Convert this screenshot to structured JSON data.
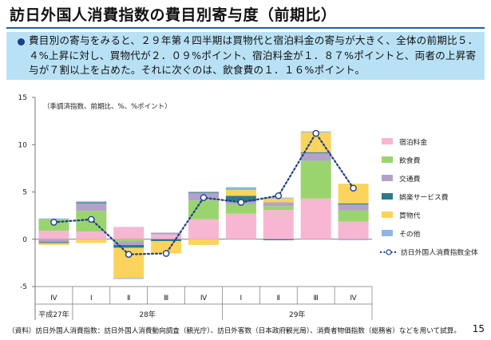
{
  "header": {
    "title": "訪日外国人消費指数の費目別寄与度（前期比）"
  },
  "summary": {
    "text": "費目別の寄与をみると、２９年第４四半期は買物代と宿泊料金の寄与が大きく、全体の前期比５．４%上昇に対し、買物代が２．０９%ポイント、宿泊料金が１．８７%ポイントと、両者の上昇寄与が７割以上を占めた。それに次ぐのは、飲食費の１．１６%ポイント。"
  },
  "chart_data": {
    "type": "bar",
    "stacked": true,
    "note": "（季調済指数、前期比、%、%ポイント）",
    "ylim": [
      -5,
      15
    ],
    "yticks": [
      -5,
      0,
      5,
      10,
      15
    ],
    "categories": [
      "Ⅳ",
      "Ⅰ",
      "Ⅱ",
      "Ⅲ",
      "Ⅳ",
      "Ⅰ",
      "Ⅱ",
      "Ⅲ",
      "Ⅳ"
    ],
    "year_groups": [
      {
        "label": "平成27年",
        "start": 0,
        "end": 0
      },
      {
        "label": "28年",
        "start": 1,
        "end": 4
      },
      {
        "label": "29年",
        "start": 5,
        "end": 8
      }
    ],
    "series": [
      {
        "name": "宿泊料金",
        "color": "#f7b6d2",
        "values": [
          0.9,
          0.8,
          1.3,
          0.5,
          2.1,
          2.7,
          3.1,
          4.3,
          1.87
        ]
      },
      {
        "name": "飲食費",
        "color": "#9ad46f",
        "values": [
          1.2,
          2.2,
          -0.2,
          0.0,
          2.0,
          1.0,
          0.4,
          4.0,
          1.16
        ]
      },
      {
        "name": "交通費",
        "color": "#b3a2c7",
        "values": [
          -0.3,
          0.8,
          -0.4,
          0.2,
          0.8,
          0.3,
          0.4,
          0.8,
          0.65
        ]
      },
      {
        "name": "娯楽サービス費",
        "color": "#2e7a8c",
        "values": [
          -0.1,
          0.1,
          -0.3,
          -0.2,
          0.1,
          0.6,
          -0.1,
          0.1,
          0.1
        ]
      },
      {
        "name": "買物代",
        "color": "#fcd35c",
        "values": [
          -0.2,
          -0.4,
          -3.2,
          -1.3,
          -0.6,
          0.6,
          0.4,
          2.1,
          2.09
        ]
      },
      {
        "name": "その他",
        "color": "#8fb5e3",
        "values": [
          0.1,
          0.1,
          -0.1,
          0.0,
          0.0,
          0.3,
          0.1,
          0.1,
          -0.1
        ]
      }
    ],
    "total": {
      "name": "訪日外国人消費指数全体",
      "color": "#1f3f8a",
      "values": [
        1.8,
        2.1,
        -1.6,
        -1.5,
        4.4,
        3.9,
        4.6,
        11.2,
        5.4
      ]
    }
  },
  "footer": {
    "source": "（資料）訪日外国人消費指数：訪日外国人消費動向調査（観光庁）、訪日外客数（日本政府観光局）、消費者物価指数（総務省）などを用いて試算。",
    "page": "15"
  }
}
